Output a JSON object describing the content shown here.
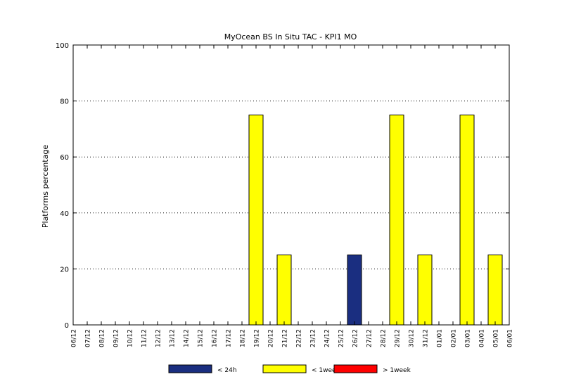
{
  "chart_data": {
    "type": "bar",
    "title": "MyOcean  BS In Situ TAC - KPI1  MO",
    "xlabel": "",
    "ylabel": "Platforms percentage",
    "ylim": [
      0,
      100
    ],
    "yticks": [
      0,
      20,
      40,
      60,
      80,
      100
    ],
    "ytick_labels": [
      "0",
      "20",
      "40",
      "60",
      "80",
      "100"
    ],
    "grid": "horizontal dotted",
    "legend_position": "bottom",
    "categories": [
      "06/12",
      "07/12",
      "08/12",
      "09/12",
      "10/12",
      "11/12",
      "12/12",
      "13/12",
      "14/12",
      "15/12",
      "16/12",
      "17/12",
      "18/12",
      "19/12",
      "20/12",
      "21/12",
      "22/12",
      "23/12",
      "24/12",
      "25/12",
      "26/12",
      "27/12",
      "28/12",
      "29/12",
      "30/12",
      "31/12",
      "01/01",
      "02/01",
      "03/01",
      "04/01",
      "05/01",
      "06/01"
    ],
    "series": [
      {
        "name": "< 24h",
        "color": "#1a2e80",
        "values": [
          0,
          0,
          0,
          0,
          0,
          0,
          0,
          0,
          0,
          0,
          0,
          0,
          0,
          0,
          0,
          0,
          0,
          0,
          0,
          0,
          25,
          0,
          0,
          0,
          0,
          0,
          0,
          0,
          0,
          0,
          0,
          0
        ]
      },
      {
        "name": "< 1week",
        "color": "#ffff00",
        "values": [
          0,
          0,
          0,
          0,
          0,
          0,
          0,
          0,
          0,
          0,
          0,
          0,
          0,
          75,
          0,
          25,
          0,
          0,
          0,
          0,
          0,
          0,
          0,
          75,
          0,
          25,
          0,
          0,
          75,
          0,
          25,
          0
        ]
      },
      {
        "name": "> 1week",
        "color": "#ff0000",
        "values": [
          0,
          0,
          0,
          0,
          0,
          0,
          0,
          0,
          0,
          0,
          0,
          0,
          0,
          0,
          0,
          0,
          0,
          0,
          0,
          0,
          0,
          0,
          0,
          0,
          0,
          0,
          0,
          0,
          0,
          0,
          0,
          0
        ]
      }
    ]
  }
}
